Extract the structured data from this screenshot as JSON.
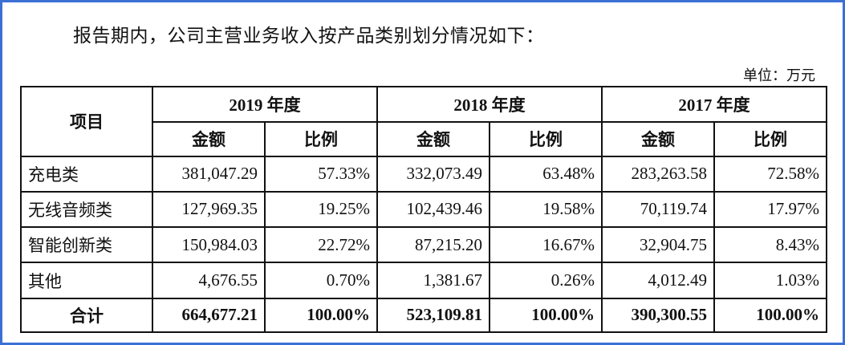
{
  "intro_text": "报告期内，公司主营业务收入按产品类别划分情况如下：",
  "unit_text": "单位：万元",
  "table": {
    "item_header": "项目",
    "year_headers": [
      "2019 年度",
      "2018 年度",
      "2017 年度"
    ],
    "sub_headers": [
      "金额",
      "比例"
    ],
    "rows": [
      {
        "category": "充电类",
        "values": [
          "381,047.29",
          "57.33%",
          "332,073.49",
          "63.48%",
          "283,263.58",
          "72.58%"
        ]
      },
      {
        "category": "无线音频类",
        "values": [
          "127,969.35",
          "19.25%",
          "102,439.46",
          "19.58%",
          "70,119.74",
          "17.97%"
        ]
      },
      {
        "category": "智能创新类",
        "values": [
          "150,984.03",
          "22.72%",
          "87,215.20",
          "16.67%",
          "32,904.75",
          "8.43%"
        ]
      },
      {
        "category": "其他",
        "values": [
          "4,676.55",
          "0.70%",
          "1,381.67",
          "0.26%",
          "4,012.49",
          "1.03%"
        ]
      }
    ],
    "total": {
      "category": "合计",
      "values": [
        "664,677.21",
        "100.00%",
        "523,109.81",
        "100.00%",
        "390,300.55",
        "100.00%"
      ]
    }
  }
}
